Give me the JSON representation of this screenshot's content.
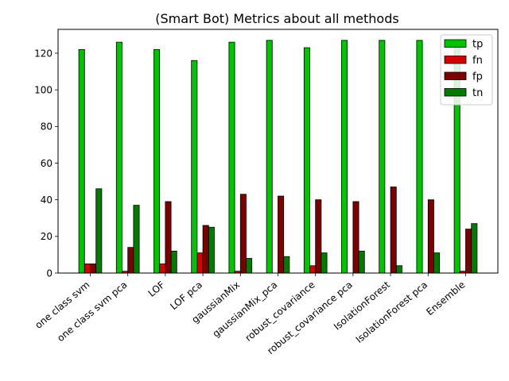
{
  "chart_data": {
    "type": "bar",
    "title": "(Smart Bot) Metrics about all methods",
    "xlabel": "",
    "ylabel": "",
    "ylim": [
      0,
      133
    ],
    "yticks": [
      0,
      20,
      40,
      60,
      80,
      100,
      120
    ],
    "categories": [
      "one class svm",
      "one class svm pca",
      "LOF",
      "LOF pca",
      "gaussianMix",
      "gaussianMix_pca",
      "robust_covariance",
      "robust_covariance pca",
      "IsolationForest",
      "IsolationForest pca",
      "Ensemble"
    ],
    "series": [
      {
        "name": "tp",
        "color": "#00c400",
        "values": [
          122,
          126,
          122,
          116,
          126,
          127,
          123,
          127,
          127,
          127,
          126
        ]
      },
      {
        "name": "fn",
        "color": "#d60000",
        "values": [
          5,
          1,
          5,
          11,
          1,
          0,
          4,
          0,
          0,
          0,
          1
        ]
      },
      {
        "name": "fp",
        "color": "#7b0000",
        "values": [
          5,
          14,
          39,
          26,
          43,
          42,
          40,
          39,
          47,
          40,
          24
        ]
      },
      {
        "name": "tn",
        "color": "#007a00",
        "values": [
          46,
          37,
          12,
          25,
          8,
          9,
          11,
          12,
          4,
          11,
          27
        ]
      }
    ],
    "legend": "top-right",
    "grid": false
  }
}
